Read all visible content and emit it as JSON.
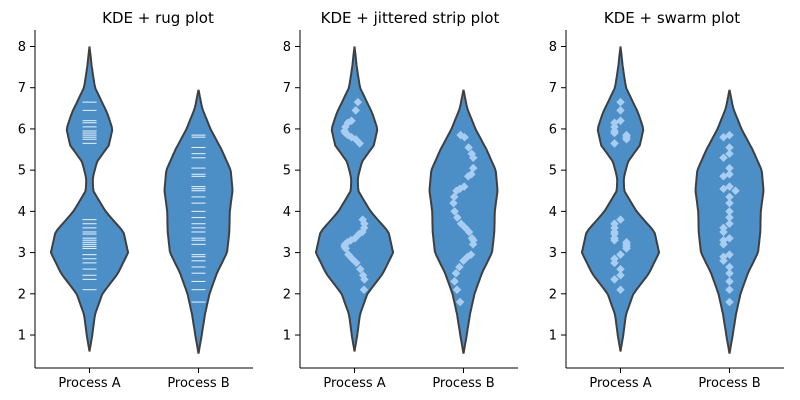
{
  "chart_data": [
    {
      "type": "violin",
      "title": "KDE + rug plot",
      "overlay": "rug",
      "categories": [
        "Process A",
        "Process B"
      ],
      "yticks": [
        1,
        2,
        3,
        4,
        5,
        6,
        7,
        8
      ],
      "ylim": [
        0.2,
        8.4
      ],
      "grid": false,
      "colors": {
        "violin": "#4c8fc7",
        "outline": "#3f3f3f",
        "points": "#a9cdf0",
        "rug": "#eaf3fc"
      },
      "series": [
        {
          "values": [
            6.65,
            6.45,
            6.2,
            6.15,
            6.05,
            5.95,
            5.9,
            5.85,
            5.8,
            5.75,
            5.65,
            3.8,
            3.7,
            3.6,
            3.5,
            3.45,
            3.35,
            3.3,
            3.25,
            3.2,
            3.15,
            3.1,
            2.95,
            2.85,
            2.75,
            2.6,
            2.45,
            2.35,
            2.1
          ]
        },
        {
          "values": [
            5.85,
            5.8,
            5.55,
            5.4,
            5.3,
            5.05,
            4.9,
            4.85,
            4.6,
            4.55,
            4.5,
            4.35,
            4.2,
            4.0,
            3.85,
            3.7,
            3.6,
            3.5,
            3.35,
            3.3,
            3.2,
            2.95,
            2.9,
            2.8,
            2.65,
            2.5,
            2.3,
            2.1,
            1.8
          ]
        }
      ],
      "kde": [
        {
          "range": [
            0.6,
            8.0
          ],
          "density": [
            [
              0.6,
              0
            ],
            [
              1.0,
              0.06
            ],
            [
              1.5,
              0.12
            ],
            [
              2.0,
              0.28
            ],
            [
              2.5,
              0.62
            ],
            [
              3.0,
              0.84
            ],
            [
              3.5,
              0.74
            ],
            [
              4.0,
              0.35
            ],
            [
              4.5,
              0.08
            ],
            [
              4.8,
              0.07
            ],
            [
              5.2,
              0.16
            ],
            [
              5.6,
              0.42
            ],
            [
              6.0,
              0.5
            ],
            [
              6.4,
              0.38
            ],
            [
              7.0,
              0.12
            ],
            [
              7.5,
              0.05
            ],
            [
              8.0,
              0
            ]
          ]
        },
        {
          "range": [
            0.55,
            6.95
          ],
          "density": [
            [
              0.55,
              0
            ],
            [
              1.0,
              0.07
            ],
            [
              1.5,
              0.14
            ],
            [
              2.0,
              0.24
            ],
            [
              2.5,
              0.4
            ],
            [
              3.0,
              0.62
            ],
            [
              3.5,
              0.67
            ],
            [
              4.0,
              0.68
            ],
            [
              4.5,
              0.74
            ],
            [
              5.0,
              0.7
            ],
            [
              5.5,
              0.5
            ],
            [
              6.0,
              0.26
            ],
            [
              6.5,
              0.08
            ],
            [
              6.95,
              0
            ]
          ]
        }
      ]
    },
    {
      "type": "violin",
      "title": "KDE + jittered strip plot",
      "overlay": "strip",
      "categories": [
        "Process A",
        "Process B"
      ],
      "yticks": [
        1,
        2,
        3,
        4,
        5,
        6,
        7,
        8
      ],
      "ylim": [
        0.2,
        8.4
      ],
      "grid": false,
      "colors": {
        "violin": "#4c8fc7",
        "outline": "#3f3f3f",
        "points": "#a9cdf0",
        "rug": "#eaf3fc"
      },
      "series": [
        {
          "values": [
            6.65,
            6.45,
            6.2,
            6.15,
            6.05,
            5.95,
            5.9,
            5.85,
            5.8,
            5.75,
            5.65,
            3.8,
            3.7,
            3.6,
            3.5,
            3.45,
            3.35,
            3.3,
            3.25,
            3.2,
            3.15,
            3.1,
            2.95,
            2.85,
            2.75,
            2.6,
            2.45,
            2.35,
            2.1
          ]
        },
        {
          "values": [
            5.85,
            5.8,
            5.55,
            5.4,
            5.3,
            5.05,
            4.9,
            4.85,
            4.6,
            4.55,
            4.5,
            4.35,
            4.2,
            4.0,
            3.85,
            3.7,
            3.6,
            3.5,
            3.35,
            3.3,
            3.2,
            2.95,
            2.9,
            2.8,
            2.65,
            2.5,
            2.3,
            2.1,
            1.8
          ]
        }
      ],
      "kde": [
        {
          "range": [
            0.6,
            8.0
          ],
          "density": [
            [
              0.6,
              0
            ],
            [
              1.0,
              0.06
            ],
            [
              1.5,
              0.12
            ],
            [
              2.0,
              0.28
            ],
            [
              2.5,
              0.62
            ],
            [
              3.0,
              0.84
            ],
            [
              3.5,
              0.74
            ],
            [
              4.0,
              0.35
            ],
            [
              4.5,
              0.08
            ],
            [
              4.8,
              0.07
            ],
            [
              5.2,
              0.16
            ],
            [
              5.6,
              0.42
            ],
            [
              6.0,
              0.5
            ],
            [
              6.4,
              0.38
            ],
            [
              7.0,
              0.12
            ],
            [
              7.5,
              0.05
            ],
            [
              8.0,
              0
            ]
          ]
        },
        {
          "range": [
            0.55,
            6.95
          ],
          "density": [
            [
              0.55,
              0
            ],
            [
              1.0,
              0.07
            ],
            [
              1.5,
              0.14
            ],
            [
              2.0,
              0.24
            ],
            [
              2.5,
              0.4
            ],
            [
              3.0,
              0.62
            ],
            [
              3.5,
              0.67
            ],
            [
              4.0,
              0.68
            ],
            [
              4.5,
              0.74
            ],
            [
              5.0,
              0.7
            ],
            [
              5.5,
              0.5
            ],
            [
              6.0,
              0.26
            ],
            [
              6.5,
              0.08
            ],
            [
              6.95,
              0
            ]
          ]
        }
      ]
    },
    {
      "type": "violin",
      "title": "KDE + swarm plot",
      "overlay": "swarm",
      "categories": [
        "Process A",
        "Process B"
      ],
      "yticks": [
        1,
        2,
        3,
        4,
        5,
        6,
        7,
        8
      ],
      "ylim": [
        0.2,
        8.4
      ],
      "grid": false,
      "colors": {
        "violin": "#4c8fc7",
        "outline": "#3f3f3f",
        "points": "#a9cdf0",
        "rug": "#eaf3fc"
      },
      "series": [
        {
          "values": [
            6.65,
            6.45,
            6.2,
            6.15,
            6.05,
            5.95,
            5.9,
            5.85,
            5.8,
            5.75,
            5.65,
            3.8,
            3.7,
            3.6,
            3.5,
            3.45,
            3.35,
            3.3,
            3.25,
            3.2,
            3.15,
            3.1,
            2.95,
            2.85,
            2.75,
            2.6,
            2.45,
            2.35,
            2.1
          ]
        },
        {
          "values": [
            5.85,
            5.8,
            5.55,
            5.4,
            5.3,
            5.05,
            4.9,
            4.85,
            4.6,
            4.55,
            4.5,
            4.35,
            4.2,
            4.0,
            3.85,
            3.7,
            3.6,
            3.5,
            3.35,
            3.3,
            3.2,
            2.95,
            2.9,
            2.8,
            2.65,
            2.5,
            2.3,
            2.1,
            1.8
          ]
        }
      ],
      "kde": [
        {
          "range": [
            0.6,
            8.0
          ],
          "density": [
            [
              0.6,
              0
            ],
            [
              1.0,
              0.06
            ],
            [
              1.5,
              0.12
            ],
            [
              2.0,
              0.28
            ],
            [
              2.5,
              0.62
            ],
            [
              3.0,
              0.84
            ],
            [
              3.5,
              0.74
            ],
            [
              4.0,
              0.35
            ],
            [
              4.5,
              0.08
            ],
            [
              4.8,
              0.07
            ],
            [
              5.2,
              0.16
            ],
            [
              5.6,
              0.42
            ],
            [
              6.0,
              0.5
            ],
            [
              6.4,
              0.38
            ],
            [
              7.0,
              0.12
            ],
            [
              7.5,
              0.05
            ],
            [
              8.0,
              0
            ]
          ]
        },
        {
          "range": [
            0.55,
            6.95
          ],
          "density": [
            [
              0.55,
              0
            ],
            [
              1.0,
              0.07
            ],
            [
              1.5,
              0.14
            ],
            [
              2.0,
              0.24
            ],
            [
              2.5,
              0.4
            ],
            [
              3.0,
              0.62
            ],
            [
              3.5,
              0.67
            ],
            [
              4.0,
              0.68
            ],
            [
              4.5,
              0.74
            ],
            [
              5.0,
              0.7
            ],
            [
              5.5,
              0.5
            ],
            [
              6.0,
              0.26
            ],
            [
              6.5,
              0.08
            ],
            [
              6.95,
              0
            ]
          ]
        }
      ]
    }
  ]
}
